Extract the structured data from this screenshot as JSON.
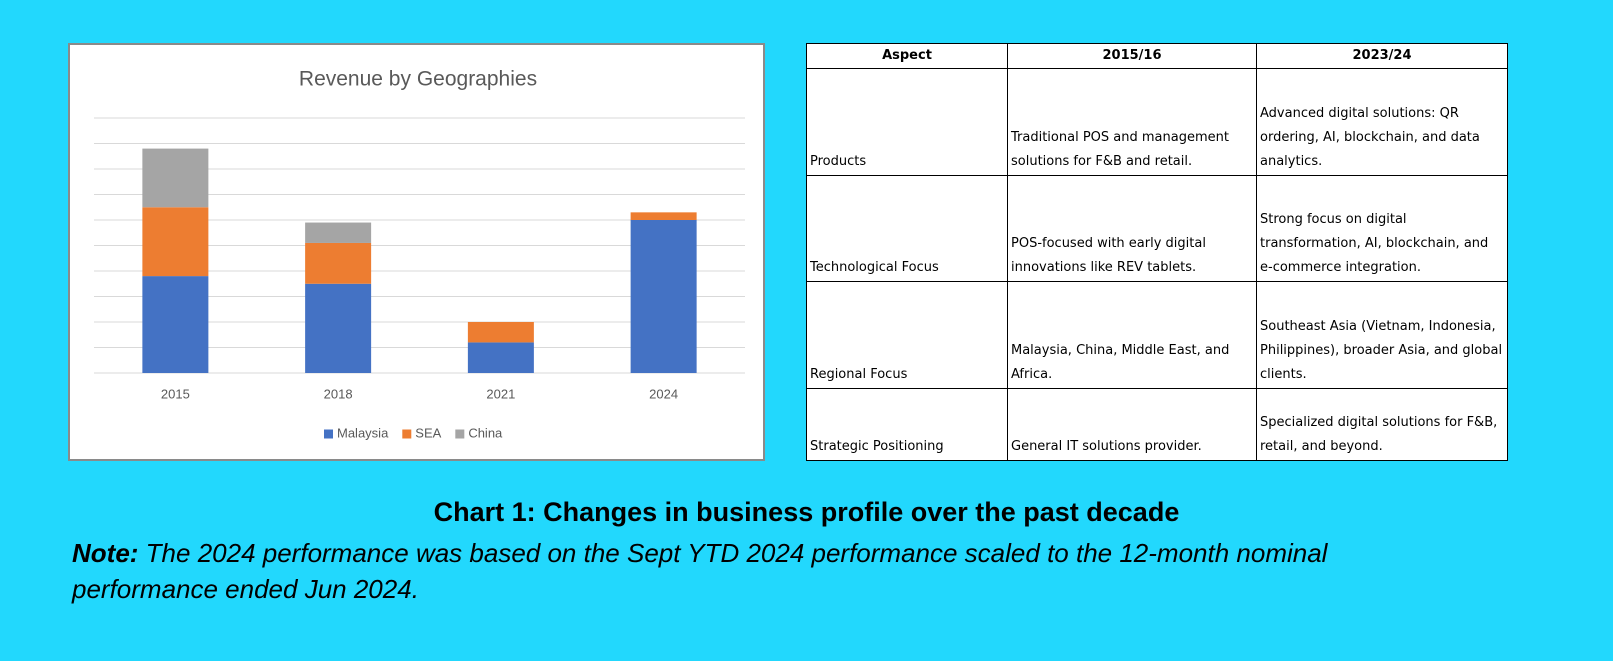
{
  "chart_data": {
    "type": "bar",
    "stacked": true,
    "title": "Revenue by Geographies",
    "categories": [
      "2015",
      "2018",
      "2021",
      "2024"
    ],
    "series": [
      {
        "name": "Malaysia",
        "color": "#4472c4",
        "values": [
          3.8,
          3.5,
          1.2,
          6.0
        ]
      },
      {
        "name": "SEA",
        "color": "#ed7d31",
        "values": [
          2.7,
          1.6,
          0.8,
          0.3
        ]
      },
      {
        "name": "China",
        "color": "#a5a5a5",
        "values": [
          2.3,
          0.8,
          0,
          0
        ]
      }
    ],
    "ylim": [
      0,
      10
    ],
    "yticks": [
      0,
      1,
      2,
      3,
      4,
      5,
      6,
      7,
      8,
      9,
      10
    ],
    "grid": true,
    "legend": "bottom"
  },
  "table": {
    "header": [
      "Aspect",
      "2015/16",
      "2023/24"
    ],
    "rows": [
      [
        "Products",
        "Traditional POS and management solutions for F&B and retail.",
        "Advanced digital solutions: QR ordering, AI, blockchain, and data analytics."
      ],
      [
        "Technological Focus",
        "POS-focused with early digital innovations like REV tablets.",
        "Strong focus on digital transformation, AI, blockchain, and e-commerce integration."
      ],
      [
        "Regional Focus",
        "Malaysia, China, Middle East, and Africa.",
        "Southeast Asia (Vietnam, Indonesia, Philippines), broader Asia, and global clients."
      ],
      [
        "Strategic Positioning",
        "General IT solutions provider.",
        "Specialized digital solutions for F&B, retail, and beyond."
      ]
    ]
  },
  "caption": "Chart 1: Changes in business profile over the past decade",
  "note": {
    "label": "Note:",
    "text": "The 2024 performance was based on the Sept YTD 2024 performance scaled to the 12-month nominal performance ended Jun 2024."
  }
}
